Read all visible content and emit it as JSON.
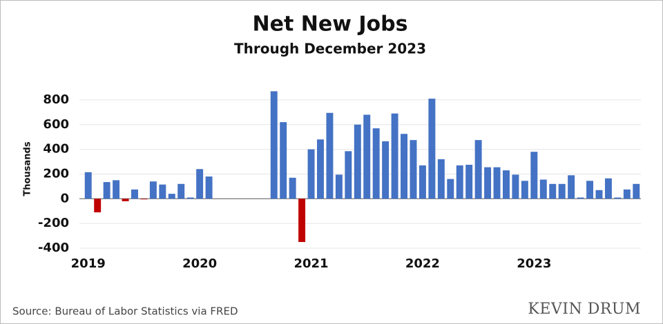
{
  "chart_data": {
    "type": "bar",
    "title": "Net New Jobs",
    "subtitle": "Through December 2023",
    "y_label": "Thousands",
    "source": "Source: Bureau of Labor Statistics via FRED",
    "watermark": "KEVIN DRUM",
    "categories": [
      "2019",
      null,
      null,
      null,
      null,
      null,
      null,
      null,
      null,
      null,
      null,
      null,
      "2020",
      null,
      null,
      null,
      null,
      null,
      null,
      null,
      null,
      null,
      null,
      null,
      "2021",
      null,
      null,
      null,
      null,
      null,
      null,
      null,
      null,
      null,
      null,
      null,
      "2022",
      null,
      null,
      null,
      null,
      null,
      null,
      null,
      null,
      null,
      null,
      null,
      "2023",
      null,
      null,
      null,
      null,
      null,
      null,
      null,
      null,
      null,
      null,
      null
    ],
    "values": [
      215,
      -110,
      135,
      150,
      -20,
      75,
      -5,
      140,
      115,
      40,
      120,
      10,
      240,
      180,
      null,
      null,
      null,
      null,
      null,
      null,
      870,
      620,
      170,
      -350,
      400,
      480,
      695,
      195,
      385,
      600,
      680,
      570,
      465,
      690,
      525,
      475,
      270,
      810,
      320,
      160,
      270,
      275,
      475,
      255,
      255,
      230,
      195,
      145,
      380,
      155,
      120,
      120,
      190,
      10,
      145,
      70,
      165,
      10,
      75,
      120
    ],
    "color": "#4472c4",
    "negative_color": "#c00000",
    "ylim": [
      -400,
      900
    ],
    "yticks": [
      -400,
      -200,
      0,
      200,
      400,
      600,
      800
    ],
    "grid": true
  }
}
